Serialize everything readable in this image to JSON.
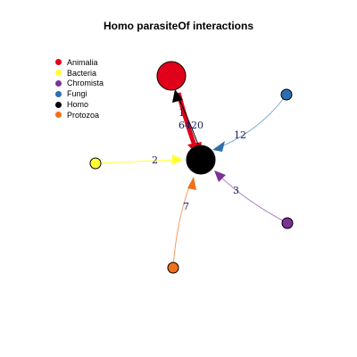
{
  "title": "Homo parasiteOf interactions",
  "legend": [
    {
      "label": "Animalia",
      "color": "#e0001a"
    },
    {
      "label": "Bacteria",
      "color": "#ffff33"
    },
    {
      "label": "Chromista",
      "color": "#7b3294"
    },
    {
      "label": "Fungi",
      "color": "#2c6fb0"
    },
    {
      "label": "Homo",
      "color": "#000000"
    },
    {
      "label": "Protozoa",
      "color": "#f0711c"
    }
  ],
  "edges": [
    {
      "from": "Homo",
      "to": "Animalia",
      "label": "1",
      "color": "#000000"
    },
    {
      "from": "Animalia",
      "to": "Homo",
      "label": "6420",
      "color": "#e0001a"
    },
    {
      "from": "Fungi",
      "to": "Homo",
      "label": "12",
      "color": "#2c6fb0"
    },
    {
      "from": "Bacteria",
      "to": "Homo",
      "label": "2",
      "color": "#ffff33"
    },
    {
      "from": "Chromista",
      "to": "Homo",
      "label": "3",
      "color": "#7b3294"
    },
    {
      "from": "Protozoa",
      "to": "Homo",
      "label": "7",
      "color": "#f0711c"
    }
  ]
}
